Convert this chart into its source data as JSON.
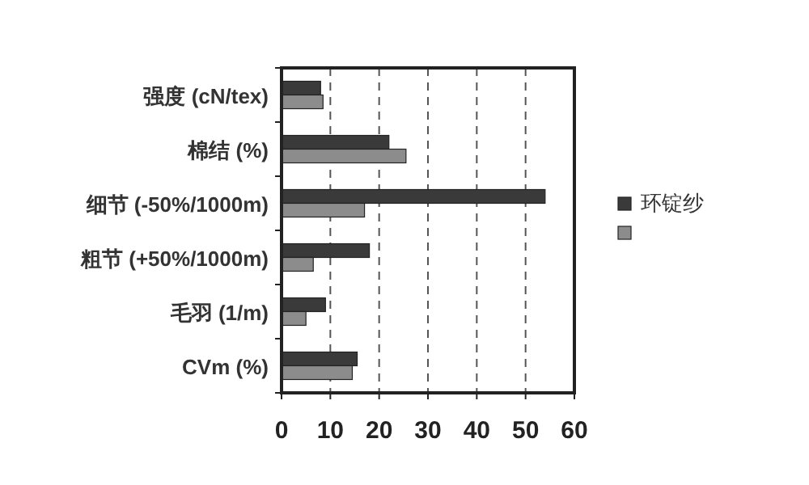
{
  "chart_data": {
    "type": "bar",
    "orientation": "horizontal",
    "categories": [
      "强度 (cN/tex)",
      "棉结 (%)",
      "细节 (-50%/1000m)",
      "粗节 (+50%/1000m)",
      "毛羽 (1/m)",
      "CVm (%)"
    ],
    "series": [
      {
        "name": "环锭纱",
        "color": "#3a3a3a",
        "values": [
          8,
          22,
          54,
          18,
          9,
          15.5
        ]
      },
      {
        "color": "#8c8c8c",
        "values": [
          8.5,
          25.5,
          17,
          6.5,
          5,
          14.5
        ]
      }
    ],
    "xlim": [
      0,
      60
    ],
    "xticks": [
      0,
      10,
      20,
      30,
      40,
      50,
      60
    ],
    "grid": "x",
    "legend": "right"
  }
}
